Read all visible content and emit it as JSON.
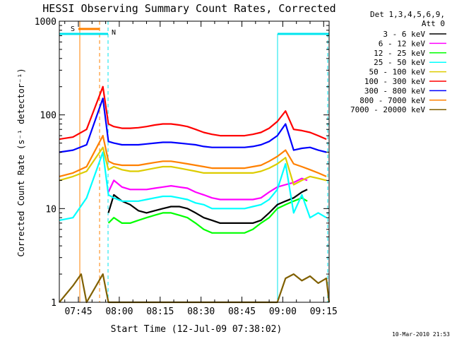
{
  "chart_data": {
    "type": "line",
    "title": "HESSI Observing Summary Count Rates, Corrected",
    "xlabel": "Start Time (12-Jul-09 07:38:02)",
    "ylabel": "Corrected Count Rate (s⁻¹ detector⁻¹)",
    "yscale": "log",
    "ylim": [
      1,
      1000
    ],
    "xlim_minutes_after_0738": [
      0,
      99
    ],
    "x_tick_labels": [
      "07:45",
      "08:00",
      "08:15",
      "08:30",
      "08:45",
      "09:00",
      "09:15"
    ],
    "y_tick_labels": [
      "1",
      "10",
      "100",
      "1000"
    ],
    "legend_header": [
      "Det 1,3,4,5,6,9,",
      "Att 0"
    ],
    "timestamp": "10-Mar-2010 21:53",
    "markers": [
      {
        "label": "S",
        "color": "#ff8000"
      },
      {
        "label": "N",
        "color": "#00e5ee"
      }
    ],
    "series": [
      {
        "name": "3 - 6 keV",
        "color": "#000000",
        "points": [
          [
            18,
            9
          ],
          [
            20,
            14
          ],
          [
            23,
            12
          ],
          [
            26,
            11
          ],
          [
            29,
            9.5
          ],
          [
            32,
            9
          ],
          [
            35,
            9.5
          ],
          [
            38,
            10
          ],
          [
            41,
            10.5
          ],
          [
            44,
            10.5
          ],
          [
            47,
            10
          ],
          [
            50,
            9
          ],
          [
            53,
            8
          ],
          [
            56,
            7.5
          ],
          [
            59,
            7
          ],
          [
            62,
            7
          ],
          [
            65,
            7
          ],
          [
            68,
            7
          ],
          [
            71,
            7
          ],
          [
            74,
            7.5
          ],
          [
            77,
            9
          ],
          [
            80,
            11
          ],
          [
            83,
            12
          ],
          [
            86,
            13
          ],
          [
            89,
            15
          ],
          [
            91,
            16
          ]
        ]
      },
      {
        "name": "6 - 12 keV",
        "color": "#ff00ff",
        "points": [
          [
            18,
            15
          ],
          [
            20,
            20
          ],
          [
            23,
            17
          ],
          [
            26,
            16
          ],
          [
            29,
            16
          ],
          [
            32,
            16
          ],
          [
            35,
            16.5
          ],
          [
            38,
            17
          ],
          [
            41,
            17.5
          ],
          [
            44,
            17
          ],
          [
            47,
            16.5
          ],
          [
            50,
            15
          ],
          [
            53,
            14
          ],
          [
            56,
            13
          ],
          [
            59,
            12.5
          ],
          [
            62,
            12.5
          ],
          [
            65,
            12.5
          ],
          [
            68,
            12.5
          ],
          [
            71,
            12.5
          ],
          [
            74,
            13
          ],
          [
            77,
            15
          ],
          [
            80,
            17
          ],
          [
            83,
            18
          ],
          [
            86,
            19
          ],
          [
            89,
            21
          ],
          [
            91,
            20
          ]
        ]
      },
      {
        "name": "12 - 25 keV",
        "color": "#00ff00",
        "points": [
          [
            18,
            7
          ],
          [
            20,
            8
          ],
          [
            23,
            7
          ],
          [
            26,
            7
          ],
          [
            29,
            7.5
          ],
          [
            32,
            8
          ],
          [
            35,
            8.5
          ],
          [
            38,
            9
          ],
          [
            41,
            9
          ],
          [
            44,
            8.5
          ],
          [
            47,
            8
          ],
          [
            50,
            7
          ],
          [
            53,
            6
          ],
          [
            56,
            5.5
          ],
          [
            59,
            5.5
          ],
          [
            62,
            5.5
          ],
          [
            65,
            5.5
          ],
          [
            68,
            5.5
          ],
          [
            71,
            6
          ],
          [
            74,
            7
          ],
          [
            77,
            8
          ],
          [
            80,
            10
          ],
          [
            83,
            11
          ],
          [
            86,
            12
          ],
          [
            89,
            13
          ],
          [
            91,
            12
          ]
        ]
      },
      {
        "name": "25 - 50 keV",
        "color": "#00ffff",
        "points": [
          [
            0,
            7.5
          ],
          [
            5,
            8
          ],
          [
            10,
            13
          ],
          [
            16,
            40
          ],
          [
            18,
            14
          ],
          [
            20,
            13
          ],
          [
            23,
            12
          ],
          [
            26,
            12
          ],
          [
            29,
            12
          ],
          [
            32,
            12.5
          ],
          [
            35,
            13
          ],
          [
            38,
            13.5
          ],
          [
            41,
            13.5
          ],
          [
            44,
            13
          ],
          [
            47,
            12.5
          ],
          [
            50,
            11.5
          ],
          [
            53,
            11
          ],
          [
            56,
            10
          ],
          [
            59,
            10
          ],
          [
            62,
            10
          ],
          [
            65,
            10
          ],
          [
            68,
            10
          ],
          [
            71,
            10.5
          ],
          [
            74,
            11
          ],
          [
            77,
            12.5
          ],
          [
            80,
            16
          ],
          [
            83,
            30
          ],
          [
            86,
            9
          ],
          [
            89,
            14
          ],
          [
            92,
            8
          ],
          [
            95,
            9
          ],
          [
            98,
            8
          ]
        ]
      },
      {
        "name": "50 - 100 keV",
        "color": "#ddcc00",
        "points": [
          [
            0,
            20
          ],
          [
            5,
            22
          ],
          [
            10,
            25
          ],
          [
            16,
            45
          ],
          [
            18,
            26
          ],
          [
            20,
            28
          ],
          [
            23,
            26
          ],
          [
            26,
            25
          ],
          [
            29,
            25
          ],
          [
            32,
            26
          ],
          [
            35,
            27
          ],
          [
            38,
            28
          ],
          [
            41,
            28
          ],
          [
            44,
            27
          ],
          [
            47,
            26
          ],
          [
            50,
            25
          ],
          [
            53,
            24
          ],
          [
            56,
            24
          ],
          [
            59,
            24
          ],
          [
            62,
            24
          ],
          [
            65,
            24
          ],
          [
            68,
            24
          ],
          [
            71,
            24
          ],
          [
            74,
            25
          ],
          [
            77,
            27
          ],
          [
            80,
            30
          ],
          [
            83,
            35
          ],
          [
            86,
            18
          ],
          [
            89,
            20
          ],
          [
            92,
            22
          ],
          [
            95,
            21
          ],
          [
            98,
            20
          ]
        ]
      },
      {
        "name": "100 - 300 keV",
        "color": "#ff0000",
        "points": [
          [
            0,
            55
          ],
          [
            5,
            58
          ],
          [
            10,
            70
          ],
          [
            16,
            200
          ],
          [
            18,
            80
          ],
          [
            20,
            75
          ],
          [
            23,
            72
          ],
          [
            26,
            72
          ],
          [
            29,
            73
          ],
          [
            32,
            75
          ],
          [
            35,
            78
          ],
          [
            38,
            80
          ],
          [
            41,
            80
          ],
          [
            44,
            78
          ],
          [
            47,
            75
          ],
          [
            50,
            70
          ],
          [
            53,
            65
          ],
          [
            56,
            62
          ],
          [
            59,
            60
          ],
          [
            62,
            60
          ],
          [
            65,
            60
          ],
          [
            68,
            60
          ],
          [
            71,
            62
          ],
          [
            74,
            65
          ],
          [
            77,
            72
          ],
          [
            80,
            85
          ],
          [
            83,
            110
          ],
          [
            86,
            70
          ],
          [
            89,
            68
          ],
          [
            92,
            65
          ],
          [
            95,
            60
          ],
          [
            98,
            55
          ]
        ]
      },
      {
        "name": "300 - 800 keV",
        "color": "#0000ff",
        "points": [
          [
            0,
            40
          ],
          [
            5,
            42
          ],
          [
            10,
            48
          ],
          [
            16,
            150
          ],
          [
            18,
            52
          ],
          [
            20,
            50
          ],
          [
            23,
            48
          ],
          [
            26,
            48
          ],
          [
            29,
            48
          ],
          [
            32,
            49
          ],
          [
            35,
            50
          ],
          [
            38,
            51
          ],
          [
            41,
            51
          ],
          [
            44,
            50
          ],
          [
            47,
            49
          ],
          [
            50,
            48
          ],
          [
            53,
            46
          ],
          [
            56,
            45
          ],
          [
            59,
            45
          ],
          [
            62,
            45
          ],
          [
            65,
            45
          ],
          [
            68,
            45
          ],
          [
            71,
            46
          ],
          [
            74,
            48
          ],
          [
            77,
            52
          ],
          [
            80,
            60
          ],
          [
            83,
            80
          ],
          [
            86,
            42
          ],
          [
            89,
            44
          ],
          [
            92,
            45
          ],
          [
            95,
            42
          ],
          [
            98,
            40
          ]
        ]
      },
      {
        "name": "800 - 7000 keV",
        "color": "#ff8000",
        "points": [
          [
            0,
            22
          ],
          [
            5,
            24
          ],
          [
            10,
            28
          ],
          [
            16,
            60
          ],
          [
            18,
            32
          ],
          [
            20,
            30
          ],
          [
            23,
            29
          ],
          [
            26,
            29
          ],
          [
            29,
            29
          ],
          [
            32,
            30
          ],
          [
            35,
            31
          ],
          [
            38,
            32
          ],
          [
            41,
            32
          ],
          [
            44,
            31
          ],
          [
            47,
            30
          ],
          [
            50,
            29
          ],
          [
            53,
            28
          ],
          [
            56,
            27
          ],
          [
            59,
            27
          ],
          [
            62,
            27
          ],
          [
            65,
            27
          ],
          [
            68,
            27
          ],
          [
            71,
            28
          ],
          [
            74,
            29
          ],
          [
            77,
            32
          ],
          [
            80,
            36
          ],
          [
            83,
            42
          ],
          [
            86,
            30
          ],
          [
            89,
            28
          ],
          [
            92,
            26
          ],
          [
            95,
            24
          ],
          [
            98,
            22
          ]
        ]
      },
      {
        "name": "7000 - 20000 keV",
        "color": "#806000",
        "points": [
          [
            0,
            1
          ],
          [
            5,
            1.5
          ],
          [
            8,
            2
          ],
          [
            10,
            1
          ],
          [
            16,
            2
          ],
          [
            18,
            1
          ],
          [
            80,
            1
          ],
          [
            83,
            1.8
          ],
          [
            86,
            2
          ],
          [
            89,
            1.7
          ],
          [
            92,
            1.9
          ],
          [
            95,
            1.6
          ],
          [
            98,
            1.8
          ],
          [
            99,
            1
          ]
        ]
      }
    ]
  }
}
